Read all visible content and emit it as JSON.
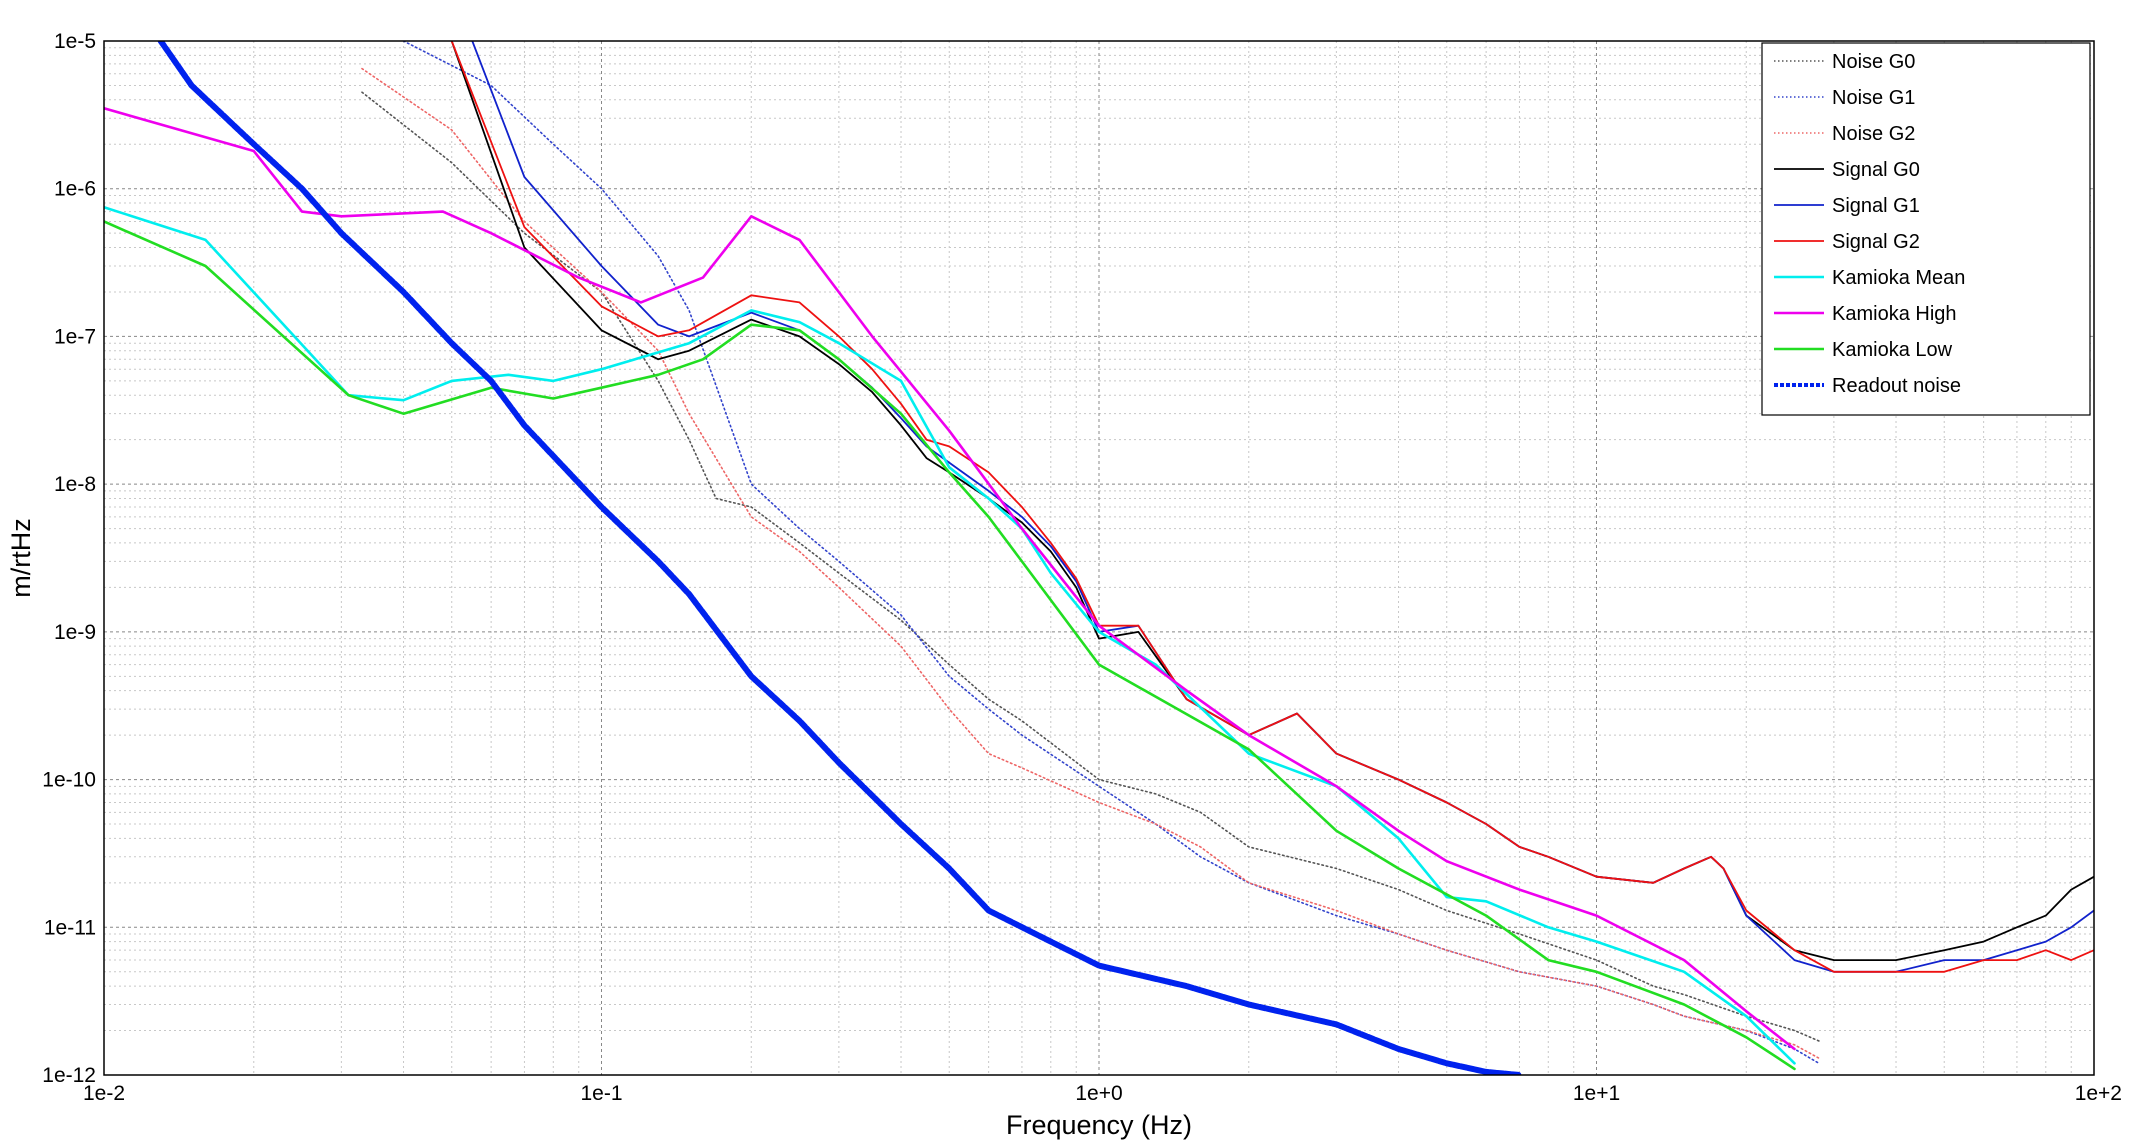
{
  "chart_data": {
    "type": "line",
    "title": "",
    "xlabel": "Frequency (Hz)",
    "ylabel": "m/rtHz",
    "xscale": "log",
    "yscale": "log",
    "xlim": [
      0.01,
      100
    ],
    "ylim": [
      1e-12,
      1e-05
    ],
    "grid": true,
    "legend_position": "top-right",
    "x_ticks": [
      {
        "value": 0.01,
        "label": "1e-2"
      },
      {
        "value": 0.1,
        "label": "1e-1"
      },
      {
        "value": 1,
        "label": "1e+0"
      },
      {
        "value": 10,
        "label": "1e+1"
      },
      {
        "value": 100,
        "label": "1e+2"
      }
    ],
    "y_ticks": [
      {
        "value": 1e-12,
        "label": "1e-12"
      },
      {
        "value": 1e-11,
        "label": "1e-11"
      },
      {
        "value": 1e-10,
        "label": "1e-10"
      },
      {
        "value": 1e-09,
        "label": "1e-9"
      },
      {
        "value": 1e-08,
        "label": "1e-8"
      },
      {
        "value": 1e-07,
        "label": "1e-7"
      },
      {
        "value": 1e-06,
        "label": "1e-6"
      },
      {
        "value": 1e-05,
        "label": "1e-5"
      }
    ],
    "series": [
      {
        "name": "Noise G0",
        "color": "#555555",
        "style": "dotted",
        "width": 1.6,
        "x": [
          0.033,
          0.05,
          0.07,
          0.1,
          0.13,
          0.15,
          0.17,
          0.2,
          0.25,
          0.3,
          0.4,
          0.5,
          0.6,
          0.7,
          1,
          1.3,
          1.6,
          2,
          3,
          4,
          5,
          7,
          10,
          13,
          15,
          20,
          25,
          28
        ],
        "y": [
          4.5e-06,
          1.5e-06,
          5e-07,
          2e-07,
          5e-08,
          2e-08,
          8e-09,
          7e-09,
          4e-09,
          2.5e-09,
          1.2e-09,
          6e-10,
          3.5e-10,
          2.5e-10,
          1e-10,
          8e-11,
          6e-11,
          3.5e-11,
          2.5e-11,
          1.8e-11,
          1.3e-11,
          9e-12,
          6e-12,
          4e-12,
          3.5e-12,
          2.5e-12,
          2e-12,
          1.7e-12
        ]
      },
      {
        "name": "Noise G1",
        "color": "#3344cc",
        "style": "dotted",
        "width": 1.6,
        "x": [
          0.04,
          0.06,
          0.08,
          0.1,
          0.13,
          0.15,
          0.2,
          0.25,
          0.3,
          0.4,
          0.5,
          0.6,
          0.7,
          1,
          1.3,
          1.6,
          2,
          3,
          4,
          5,
          7,
          10,
          13,
          15,
          20,
          25,
          28
        ],
        "y": [
          1e-05,
          5e-06,
          2e-06,
          1e-06,
          3.5e-07,
          1.5e-07,
          1e-08,
          5e-09,
          3e-09,
          1.3e-09,
          5e-10,
          3e-10,
          2e-10,
          9e-11,
          5e-11,
          3e-11,
          2e-11,
          1.2e-11,
          9e-12,
          7e-12,
          5e-12,
          4e-12,
          3e-12,
          2.5e-12,
          2e-12,
          1.5e-12,
          1.2e-12
        ]
      },
      {
        "name": "Noise G2",
        "color": "#ee6666",
        "style": "dotted",
        "width": 1.6,
        "x": [
          0.033,
          0.05,
          0.07,
          0.1,
          0.13,
          0.15,
          0.2,
          0.25,
          0.3,
          0.4,
          0.5,
          0.6,
          0.7,
          1,
          1.3,
          1.6,
          2,
          3,
          4,
          5,
          7,
          10,
          13,
          15,
          20,
          25,
          28
        ],
        "y": [
          6.5e-06,
          2.5e-06,
          6e-07,
          2e-07,
          8e-08,
          3e-08,
          6e-09,
          3.5e-09,
          2e-09,
          8e-10,
          3e-10,
          1.5e-10,
          1.2e-10,
          7e-11,
          5e-11,
          3.5e-11,
          2e-11,
          1.3e-11,
          9e-12,
          7e-12,
          5e-12,
          4e-12,
          3e-12,
          2.5e-12,
          2e-12,
          1.6e-12,
          1.3e-12
        ]
      },
      {
        "name": "Signal G0",
        "color": "#000000",
        "style": "solid",
        "width": 1.8,
        "x": [
          0.05,
          0.07,
          0.1,
          0.13,
          0.15,
          0.2,
          0.25,
          0.3,
          0.35,
          0.4,
          0.45,
          0.5,
          0.6,
          0.7,
          0.8,
          0.9,
          1,
          1.2,
          1.5,
          2,
          2.5,
          3,
          4,
          5,
          6,
          7,
          8,
          10,
          13,
          15,
          17,
          18,
          20,
          25,
          30,
          40,
          50,
          60,
          70,
          80,
          90,
          100
        ],
        "y": [
          1e-05,
          4e-07,
          1.1e-07,
          7e-08,
          8e-08,
          1.3e-07,
          1e-07,
          6.5e-08,
          4.2e-08,
          2.5e-08,
          1.5e-08,
          1.2e-08,
          8e-09,
          5.5e-09,
          3.5e-09,
          2e-09,
          9e-10,
          1e-09,
          3.5e-10,
          2e-10,
          2.8e-10,
          1.5e-10,
          1e-10,
          7e-11,
          5e-11,
          3.5e-11,
          3e-11,
          2.2e-11,
          2e-11,
          2.5e-11,
          3e-11,
          2.5e-11,
          1.2e-11,
          7e-12,
          6e-12,
          6e-12,
          7e-12,
          8e-12,
          1e-11,
          1.2e-11,
          1.8e-11,
          2.2e-11
        ]
      },
      {
        "name": "Signal G1",
        "color": "#1122cc",
        "style": "solid",
        "width": 1.8,
        "x": [
          0.055,
          0.07,
          0.1,
          0.13,
          0.15,
          0.2,
          0.25,
          0.3,
          0.35,
          0.4,
          0.45,
          0.5,
          0.6,
          0.7,
          0.8,
          0.9,
          1,
          1.2,
          1.5,
          2,
          2.5,
          3,
          4,
          5,
          6,
          7,
          8,
          10,
          13,
          15,
          17,
          18,
          20,
          25,
          30,
          40,
          50,
          60,
          70,
          80,
          90,
          100
        ],
        "y": [
          1e-05,
          1.2e-06,
          3e-07,
          1.2e-07,
          1e-07,
          1.45e-07,
          1.1e-07,
          7e-08,
          4.5e-08,
          2.8e-08,
          1.8e-08,
          1.4e-08,
          9e-09,
          6e-09,
          3.8e-09,
          2.2e-09,
          1e-09,
          1.1e-09,
          3.5e-10,
          2e-10,
          2.8e-10,
          1.5e-10,
          1e-10,
          7e-11,
          5e-11,
          3.5e-11,
          3e-11,
          2.2e-11,
          2e-11,
          2.5e-11,
          3e-11,
          2.5e-11,
          1.2e-11,
          6e-12,
          5e-12,
          5e-12,
          6e-12,
          6e-12,
          7e-12,
          8e-12,
          1e-11,
          1.3e-11
        ]
      },
      {
        "name": "Signal G2",
        "color": "#ee1111",
        "style": "solid",
        "width": 1.8,
        "x": [
          0.05,
          0.07,
          0.1,
          0.13,
          0.15,
          0.2,
          0.25,
          0.3,
          0.35,
          0.4,
          0.45,
          0.5,
          0.6,
          0.7,
          0.8,
          0.9,
          1,
          1.2,
          1.5,
          2,
          2.5,
          3,
          4,
          5,
          6,
          7,
          8,
          10,
          13,
          15,
          17,
          18,
          20,
          25,
          30,
          40,
          50,
          60,
          70,
          80,
          90,
          100
        ],
        "y": [
          1e-05,
          5.5e-07,
          1.6e-07,
          1e-07,
          1.1e-07,
          1.9e-07,
          1.7e-07,
          1e-07,
          6e-08,
          3.5e-08,
          2e-08,
          1.8e-08,
          1.2e-08,
          7e-09,
          4e-09,
          2.3e-09,
          1.1e-09,
          1.1e-09,
          3.5e-10,
          2e-10,
          2.8e-10,
          1.5e-10,
          1e-10,
          7e-11,
          5e-11,
          3.5e-11,
          3e-11,
          2.2e-11,
          2e-11,
          2.5e-11,
          3e-11,
          2.5e-11,
          1.3e-11,
          7e-12,
          5e-12,
          5e-12,
          5e-12,
          6e-12,
          6e-12,
          7e-12,
          6e-12,
          7e-12
        ]
      },
      {
        "name": "Kamioka Mean",
        "color": "#00eeee",
        "style": "solid",
        "width": 2.6,
        "x": [
          0.01,
          0.016,
          0.031,
          0.04,
          0.05,
          0.065,
          0.08,
          0.1,
          0.15,
          0.2,
          0.25,
          0.3,
          0.4,
          0.5,
          0.6,
          0.7,
          0.8,
          1,
          1.3,
          2,
          3,
          4,
          5,
          6,
          8,
          10,
          15,
          20,
          25
        ],
        "y": [
          7.5e-07,
          4.5e-07,
          4e-08,
          3.7e-08,
          5e-08,
          5.5e-08,
          5e-08,
          6e-08,
          9e-08,
          1.5e-07,
          1.25e-07,
          9e-08,
          5e-08,
          1.3e-08,
          8e-09,
          5e-09,
          2.5e-09,
          1e-09,
          6e-10,
          1.5e-10,
          9e-11,
          4e-11,
          1.6e-11,
          1.5e-11,
          1e-11,
          8e-12,
          5e-12,
          2.5e-12,
          1.2e-12
        ]
      },
      {
        "name": "Kamioka High",
        "color": "#ee00ee",
        "style": "solid",
        "width": 2.6,
        "x": [
          0.01,
          0.02,
          0.025,
          0.03,
          0.048,
          0.06,
          0.09,
          0.12,
          0.16,
          0.2,
          0.25,
          0.35,
          0.5,
          0.7,
          1,
          1.5,
          2,
          3,
          4,
          5,
          7,
          10,
          15,
          20,
          25
        ],
        "y": [
          3.5e-06,
          1.8e-06,
          7e-07,
          6.5e-07,
          7e-07,
          5e-07,
          2.5e-07,
          1.7e-07,
          2.5e-07,
          6.5e-07,
          4.5e-07,
          1e-07,
          2.3e-08,
          5e-09,
          1.1e-09,
          4e-10,
          2e-10,
          9e-11,
          4.5e-11,
          2.8e-11,
          1.8e-11,
          1.2e-11,
          6e-12,
          2.7e-12,
          1.5e-12
        ]
      },
      {
        "name": "Kamioka Low",
        "color": "#22dd22",
        "style": "solid",
        "width": 2.6,
        "x": [
          0.01,
          0.016,
          0.031,
          0.04,
          0.06,
          0.08,
          0.1,
          0.13,
          0.16,
          0.2,
          0.25,
          0.3,
          0.4,
          0.5,
          0.6,
          0.7,
          1,
          2,
          3,
          4,
          6,
          8,
          10,
          15,
          20,
          25
        ],
        "y": [
          6e-07,
          3e-07,
          4e-08,
          3e-08,
          4.5e-08,
          3.8e-08,
          4.5e-08,
          5.5e-08,
          7e-08,
          1.2e-07,
          1.1e-07,
          7e-08,
          3e-08,
          1.2e-08,
          6e-09,
          3e-09,
          6e-10,
          1.6e-10,
          4.5e-11,
          2.5e-11,
          1.2e-11,
          6e-12,
          5e-12,
          3e-12,
          1.8e-12,
          1.1e-12
        ]
      },
      {
        "name": "Readout noise",
        "color": "#0022ee",
        "style": "dotted-thick",
        "width": 6,
        "x": [
          0.013,
          0.015,
          0.02,
          0.025,
          0.03,
          0.04,
          0.05,
          0.06,
          0.07,
          0.1,
          0.13,
          0.15,
          0.2,
          0.25,
          0.3,
          0.4,
          0.5,
          0.6,
          0.8,
          1,
          1.5,
          2,
          3,
          4,
          5,
          6,
          7
        ],
        "y": [
          1e-05,
          5e-06,
          2e-06,
          1e-06,
          5e-07,
          2e-07,
          9e-08,
          5e-08,
          2.5e-08,
          7e-09,
          3e-09,
          1.8e-09,
          5e-10,
          2.5e-10,
          1.3e-10,
          5e-11,
          2.5e-11,
          1.3e-11,
          8e-12,
          5.5e-12,
          4e-12,
          3e-12,
          2.2e-12,
          1.5e-12,
          1.2e-12,
          1.05e-12,
          1e-12
        ]
      }
    ]
  }
}
